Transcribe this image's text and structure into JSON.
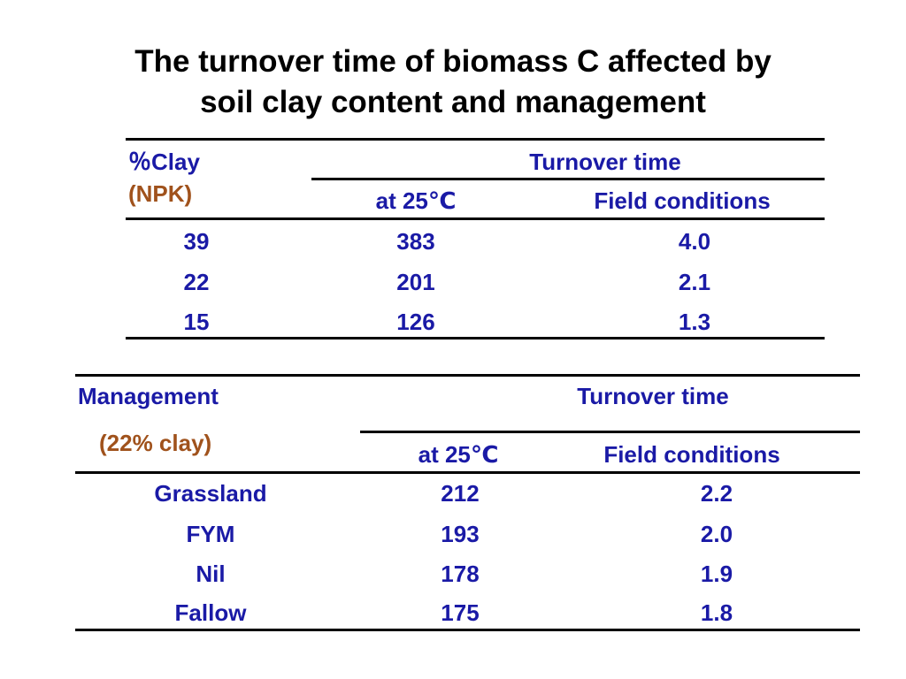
{
  "title": {
    "line1": "The turnover time of biomass C affected by",
    "line2": "soil clay content and management"
  },
  "colors": {
    "header": "#1a1aa6",
    "subheader": "#a0521c",
    "rules": "#000000"
  },
  "table1": {
    "col1_header": "％Clay",
    "col1_subheader": "(NPK)",
    "group_header": "Turnover time",
    "sub_headers": [
      "at 25℃",
      "Field conditions"
    ],
    "rows": [
      [
        "39",
        "383",
        "4.0"
      ],
      [
        "22",
        "201",
        "2.1"
      ],
      [
        "15",
        "126",
        "1.3"
      ]
    ]
  },
  "table2": {
    "col1_header": "Management",
    "col1_subheader": "(22% clay)",
    "group_header": "Turnover time",
    "sub_headers": [
      "at 25℃",
      "Field conditions"
    ],
    "rows": [
      [
        "Grassland",
        "212",
        "2.2"
      ],
      [
        "FYM",
        "193",
        "2.0"
      ],
      [
        "Nil",
        "178",
        "1.9"
      ],
      [
        "Fallow",
        "175",
        "1.8"
      ]
    ]
  }
}
